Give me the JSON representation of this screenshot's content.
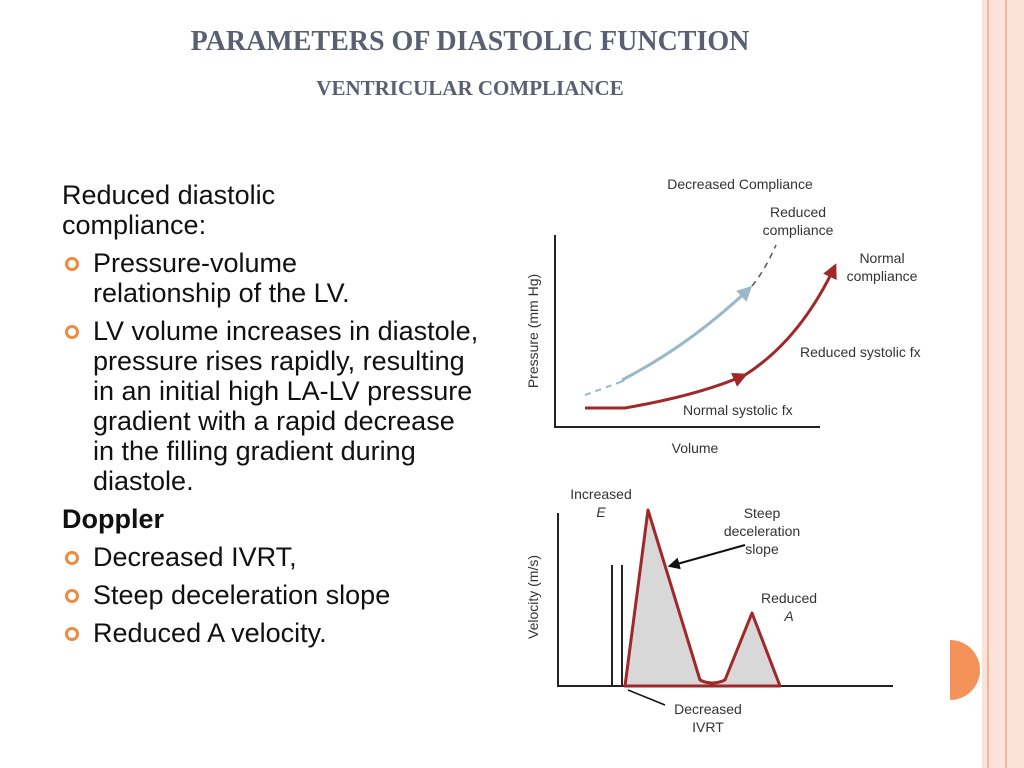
{
  "header": {
    "title": "PARAMETERS OF DIASTOLIC FUNCTION",
    "subtitle": "VENTRICULAR COMPLIANCE"
  },
  "body": {
    "intro": "Reduced diastolic compliance:",
    "bullets": [
      "Pressure-volume relationship of the LV.",
      "LV volume increases in diastole, pressure rises rapidly, resulting in an initial high LA-LV pressure gradient with a rapid decrease in the filling gradient during diastole."
    ],
    "heading": "Doppler",
    "doppler_bullets": [
      "Decreased IVRT,",
      "Steep deceleration slope",
      "Reduced A velocity."
    ]
  },
  "figure_compliance": {
    "title": "Decreased Compliance",
    "reduced_compliance": [
      "Reduced",
      "compliance"
    ],
    "normal_compliance": [
      "Normal",
      "compliance"
    ],
    "reduced_systolic": "Reduced systolic fx",
    "normal_systolic": "Normal systolic fx",
    "y_label": "Pressure (mm Hg)",
    "x_label": "Volume"
  },
  "figure_doppler": {
    "increased_e": [
      "Increased",
      "E"
    ],
    "steep_slope": [
      "Steep",
      "deceleration",
      "slope"
    ],
    "reduced_a": [
      "Reduced",
      "A"
    ],
    "ivrt": [
      "Decreased",
      "IVRT"
    ],
    "y_label": "Velocity (m/s)"
  }
}
